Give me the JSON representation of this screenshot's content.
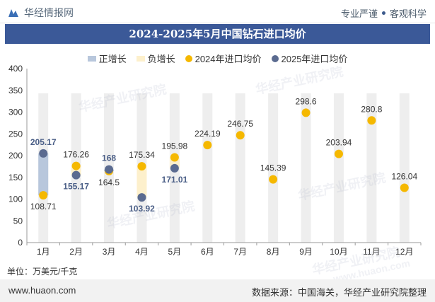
{
  "header": {
    "brand": "华经情报网",
    "right_text_1": "专业严谨",
    "right_text_2": "客观科学"
  },
  "title": "2024-2025年5月中国钻石进口均价",
  "legend": {
    "pos": "正增长",
    "neg": "负增长",
    "s2024": "2024年进口均价",
    "s2025": "2025年进口均价"
  },
  "unit": "单位：万美元/千克",
  "footer": {
    "website": "www.huaon.com",
    "source": "数据来源：中国海关，华经产业研究院整理"
  },
  "watermarks": [
    "华经产业研究院",
    "华经产业研究院",
    "华经产业研究院",
    "华经产业研究院",
    "华经产业研究院"
  ],
  "watermark_url": "www.huaon.com",
  "colors": {
    "positive": "#b8c7dc",
    "negative": "#fdf0cc",
    "s2024": "#f5b800",
    "s2025": "#5b6b90",
    "title_bg": "#3b5998",
    "bg_bar": "#eeeeee"
  },
  "chart_data": {
    "type": "line",
    "title": "2024-2025年5月中国钻石进口均价",
    "categories": [
      "1月",
      "2月",
      "3月",
      "4月",
      "5月",
      "6月",
      "7月",
      "8月",
      "9月",
      "10月",
      "11月",
      "12月"
    ],
    "series": [
      {
        "name": "2024年进口均价",
        "values": [
          108.71,
          176.26,
          164.5,
          175.34,
          195.98,
          224.19,
          246.75,
          145.39,
          298.6,
          203.94,
          280.8,
          126.04
        ]
      },
      {
        "name": "2025年进口均价",
        "values": [
          205.17,
          155.17,
          168,
          103.92,
          171.01,
          null,
          null,
          null,
          null,
          null,
          null,
          null
        ]
      }
    ],
    "change_bars": [
      {
        "category": "1月",
        "from": 108.71,
        "to": 205.17,
        "type": "正增长"
      },
      {
        "category": "2月",
        "from": 176.26,
        "to": 155.17,
        "type": "负增长"
      },
      {
        "category": "3月",
        "from": 164.5,
        "to": 168,
        "type": "正增长"
      },
      {
        "category": "4月",
        "from": 175.34,
        "to": 103.92,
        "type": "负增长"
      },
      {
        "category": "5月",
        "from": 195.98,
        "to": 171.01,
        "type": "负增长"
      }
    ],
    "ylim": [
      0,
      400
    ],
    "yticks": [
      0,
      50,
      100,
      150,
      200,
      250,
      300,
      350,
      400
    ],
    "xlabel": "",
    "ylabel": "",
    "legend_position": "top",
    "grid": false
  }
}
